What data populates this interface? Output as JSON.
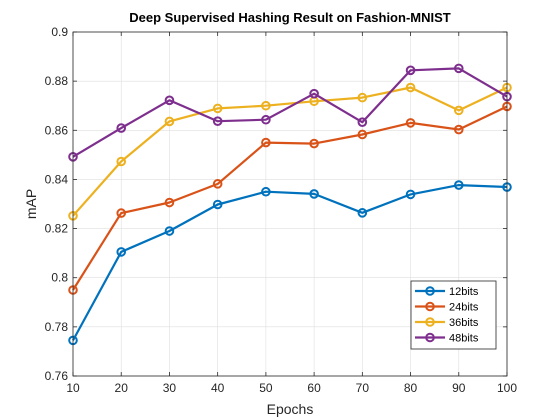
{
  "chart_data": {
    "type": "line",
    "title": "Deep Supervised Hashing Result on Fashion-MNIST",
    "xlabel": "Epochs",
    "ylabel": "mAP",
    "x": [
      10,
      20,
      30,
      40,
      50,
      60,
      70,
      80,
      90,
      100
    ],
    "xlim": [
      10,
      100
    ],
    "ylim": [
      0.76,
      0.9
    ],
    "xticks": [
      10,
      20,
      30,
      40,
      50,
      60,
      70,
      80,
      90,
      100
    ],
    "yticks": [
      0.76,
      0.78,
      0.8,
      0.82,
      0.84,
      0.86,
      0.88,
      0.9
    ],
    "ytick_labels": [
      "0.76",
      "0.78",
      "0.8",
      "0.82",
      "0.84",
      "0.86",
      "0.88",
      "0.9"
    ],
    "grid": true,
    "legend_position": "bottom-right",
    "series": [
      {
        "name": "12bits",
        "color": "#0072BD",
        "values": [
          0.7745,
          0.8105,
          0.819,
          0.8298,
          0.835,
          0.8341,
          0.8264,
          0.8339,
          0.8377,
          0.8369
        ]
      },
      {
        "name": "24bits",
        "color": "#D95319",
        "values": [
          0.795,
          0.8263,
          0.8306,
          0.8382,
          0.855,
          0.8546,
          0.8583,
          0.863,
          0.8603,
          0.8697
        ]
      },
      {
        "name": "36bits",
        "color": "#EDB120",
        "values": [
          0.8252,
          0.8473,
          0.8636,
          0.8689,
          0.87,
          0.8718,
          0.8733,
          0.8774,
          0.8681,
          0.8774
        ]
      },
      {
        "name": "48bits",
        "color": "#7E2F8E",
        "values": [
          0.8492,
          0.8609,
          0.8722,
          0.8637,
          0.8643,
          0.8749,
          0.8633,
          0.8844,
          0.8852,
          0.8737
        ]
      }
    ]
  }
}
